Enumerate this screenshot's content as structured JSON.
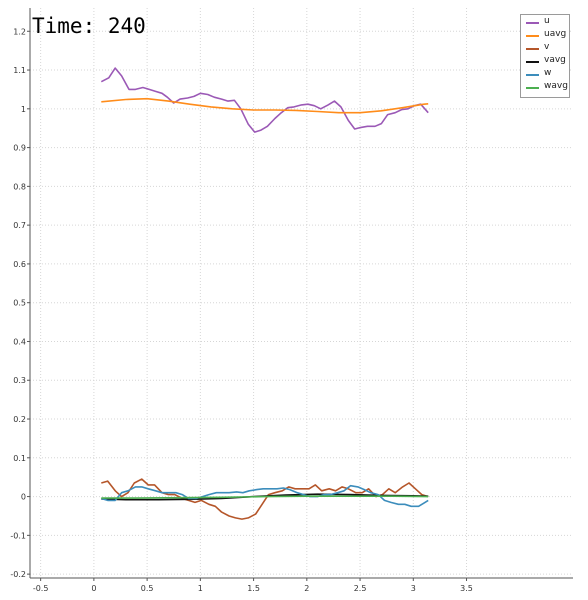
{
  "time_label": "Time: 240",
  "chart_data": {
    "type": "line",
    "xlim": [
      -0.6,
      4.5
    ],
    "ylim": [
      -0.21,
      1.26
    ],
    "x_ticks": [
      "-0.5",
      "0",
      "0.5",
      "1",
      "1.5",
      "2",
      "2.5",
      "3",
      "3.5"
    ],
    "x_tick_values": [
      -0.5,
      0,
      0.5,
      1,
      1.5,
      2,
      2.5,
      3,
      3.5
    ],
    "y_ticks": [
      "-0.2",
      "-0.1",
      "0",
      "0.1",
      "0.2",
      "0.3",
      "0.4",
      "0.5",
      "0.6",
      "0.7",
      "0.8",
      "0.9",
      "1",
      "1.1",
      "1.2"
    ],
    "y_tick_values": [
      -0.2,
      -0.1,
      0,
      0.1,
      0.2,
      0.3,
      0.4,
      0.5,
      0.6,
      0.7,
      0.8,
      0.9,
      1,
      1.1,
      1.2
    ],
    "grid": true,
    "legend_position": "top-right",
    "series": [
      {
        "name": "u",
        "color": "#9b59b6",
        "x": [
          0.07,
          0.14,
          0.2,
          0.26,
          0.33,
          0.39,
          0.46,
          0.52,
          0.58,
          0.64,
          0.69,
          0.75,
          0.81,
          0.88,
          0.94,
          1.0,
          1.07,
          1.13,
          1.2,
          1.26,
          1.32,
          1.38,
          1.45,
          1.51,
          1.57,
          1.63,
          1.7,
          1.76,
          1.82,
          1.88,
          1.95,
          2.01,
          2.07,
          2.13,
          2.2,
          2.26,
          2.32,
          2.39,
          2.45,
          2.51,
          2.57,
          2.64,
          2.7,
          2.76,
          2.83,
          2.89,
          2.95,
          3.01,
          3.07,
          3.14
        ],
        "y": [
          1.07,
          1.08,
          1.105,
          1.085,
          1.05,
          1.05,
          1.055,
          1.05,
          1.045,
          1.04,
          1.03,
          1.015,
          1.025,
          1.028,
          1.032,
          1.04,
          1.037,
          1.03,
          1.025,
          1.02,
          1.022,
          1.0,
          0.96,
          0.94,
          0.945,
          0.955,
          0.975,
          0.99,
          1.003,
          1.005,
          1.01,
          1.012,
          1.008,
          1.0,
          1.01,
          1.02,
          1.005,
          0.97,
          0.948,
          0.952,
          0.955,
          0.955,
          0.962,
          0.985,
          0.99,
          0.998,
          1.0,
          1.008,
          1.012,
          0.99
        ]
      },
      {
        "name": "uavg",
        "color": "#ff8c1a",
        "x": [
          0.07,
          0.3,
          0.5,
          0.7,
          0.9,
          1.1,
          1.3,
          1.5,
          1.7,
          1.9,
          2.1,
          2.3,
          2.5,
          2.7,
          2.9,
          3.1,
          3.14
        ],
        "y": [
          1.018,
          1.024,
          1.026,
          1.02,
          1.012,
          1.005,
          1.0,
          0.997,
          0.997,
          0.996,
          0.993,
          0.99,
          0.99,
          0.995,
          1.003,
          1.012,
          1.013
        ]
      },
      {
        "name": "v",
        "color": "#b5562a",
        "x": [
          0.07,
          0.13,
          0.2,
          0.26,
          0.32,
          0.38,
          0.45,
          0.51,
          0.57,
          0.64,
          0.7,
          0.76,
          0.83,
          0.89,
          0.95,
          1.01,
          1.08,
          1.14,
          1.2,
          1.27,
          1.33,
          1.39,
          1.45,
          1.52,
          1.58,
          1.64,
          1.7,
          1.77,
          1.83,
          1.89,
          1.96,
          2.02,
          2.08,
          2.14,
          2.21,
          2.27,
          2.33,
          2.39,
          2.46,
          2.52,
          2.58,
          2.65,
          2.71,
          2.77,
          2.83,
          2.9,
          2.96,
          3.02,
          3.08,
          3.14
        ],
        "y": [
          0.035,
          0.04,
          0.015,
          0.0,
          0.01,
          0.035,
          0.045,
          0.03,
          0.03,
          0.01,
          0.005,
          0.005,
          -0.005,
          -0.01,
          -0.015,
          -0.01,
          -0.02,
          -0.025,
          -0.04,
          -0.05,
          -0.055,
          -0.058,
          -0.055,
          -0.045,
          -0.02,
          0.005,
          0.01,
          0.015,
          0.025,
          0.02,
          0.02,
          0.02,
          0.03,
          0.015,
          0.02,
          0.015,
          0.025,
          0.02,
          0.01,
          0.01,
          0.02,
          0.0,
          0.005,
          0.02,
          0.01,
          0.025,
          0.035,
          0.02,
          0.005,
          0.0
        ]
      },
      {
        "name": "vavg",
        "color": "#111111",
        "x": [
          0.07,
          0.3,
          0.6,
          0.9,
          1.2,
          1.5,
          1.8,
          2.1,
          2.4,
          2.7,
          3.0,
          3.14
        ],
        "y": [
          -0.006,
          -0.008,
          -0.008,
          -0.007,
          -0.005,
          0.0,
          0.004,
          0.006,
          0.005,
          0.003,
          0.002,
          0.001
        ]
      },
      {
        "name": "w",
        "color": "#3c8dbc",
        "x": [
          0.07,
          0.13,
          0.2,
          0.26,
          0.32,
          0.39,
          0.45,
          0.51,
          0.58,
          0.64,
          0.7,
          0.77,
          0.83,
          0.89,
          0.96,
          1.02,
          1.08,
          1.15,
          1.21,
          1.27,
          1.34,
          1.4,
          1.46,
          1.53,
          1.59,
          1.65,
          1.72,
          1.78,
          1.84,
          1.91,
          1.97,
          2.03,
          2.1,
          2.16,
          2.22,
          2.29,
          2.35,
          2.41,
          2.48,
          2.54,
          2.6,
          2.67,
          2.73,
          2.79,
          2.86,
          2.92,
          2.98,
          3.05,
          3.11,
          3.14
        ],
        "y": [
          -0.005,
          -0.01,
          -0.01,
          0.01,
          0.015,
          0.025,
          0.025,
          0.02,
          0.015,
          0.01,
          0.01,
          0.01,
          0.005,
          -0.005,
          -0.005,
          0.0,
          0.005,
          0.01,
          0.01,
          0.01,
          0.012,
          0.01,
          0.015,
          0.018,
          0.02,
          0.02,
          0.02,
          0.022,
          0.018,
          0.01,
          0.005,
          0.0,
          0.0,
          0.005,
          0.005,
          0.01,
          0.015,
          0.028,
          0.025,
          0.018,
          0.01,
          0.005,
          -0.01,
          -0.015,
          -0.02,
          -0.02,
          -0.025,
          -0.025,
          -0.015,
          -0.01
        ]
      },
      {
        "name": "wavg",
        "color": "#4caf50",
        "x": [
          0.07,
          0.4,
          0.8,
          1.2,
          1.6,
          2.0,
          2.4,
          2.8,
          3.14
        ],
        "y": [
          -0.004,
          -0.004,
          -0.003,
          -0.002,
          0.0,
          0.001,
          0.001,
          0.001,
          0.0
        ]
      }
    ]
  }
}
